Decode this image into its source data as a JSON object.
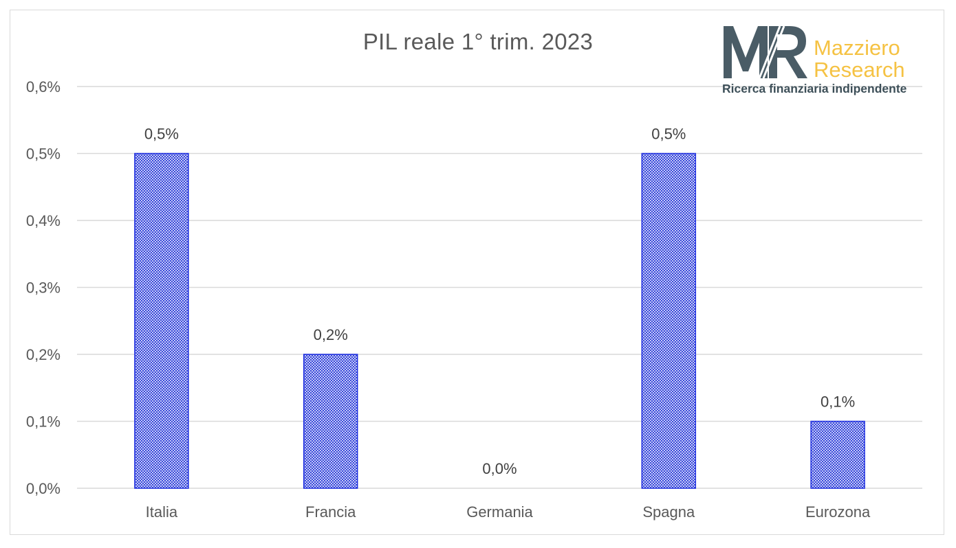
{
  "chart_data": {
    "type": "bar",
    "title": "PIL reale 1° trim. 2023",
    "categories": [
      "Italia",
      "Francia",
      "Germania",
      "Spagna",
      "Eurozona"
    ],
    "values": [
      0.5,
      0.2,
      0.0,
      0.5,
      0.1
    ],
    "data_labels": [
      "0,5%",
      "0,2%",
      "0,0%",
      "0,5%",
      "0,1%"
    ],
    "ylim": [
      0,
      0.6
    ],
    "yticks": [
      0,
      0.1,
      0.2,
      0.3,
      0.4,
      0.5,
      0.6
    ],
    "ytick_labels": [
      "0,0%",
      "0,1%",
      "0,2%",
      "0,3%",
      "0,4%",
      "0,5%",
      "0,6%"
    ],
    "xlabel": "",
    "ylabel": "",
    "grid": true,
    "legend": "none",
    "bar_fill": "crosshatch",
    "colors": {
      "bar_border": "#1f2fe0",
      "bar_pattern": "#2a3bd9",
      "grid": "#d9d9d9",
      "text": "#595959"
    }
  },
  "logo": {
    "mark": "MR",
    "line1": "Mazziero",
    "line2": "Research",
    "tagline": "Ricerca finanziaria indipendente",
    "colors": {
      "mark": "#4a5c66",
      "name": "#f5c243",
      "tagline": "#3d4f58"
    }
  }
}
